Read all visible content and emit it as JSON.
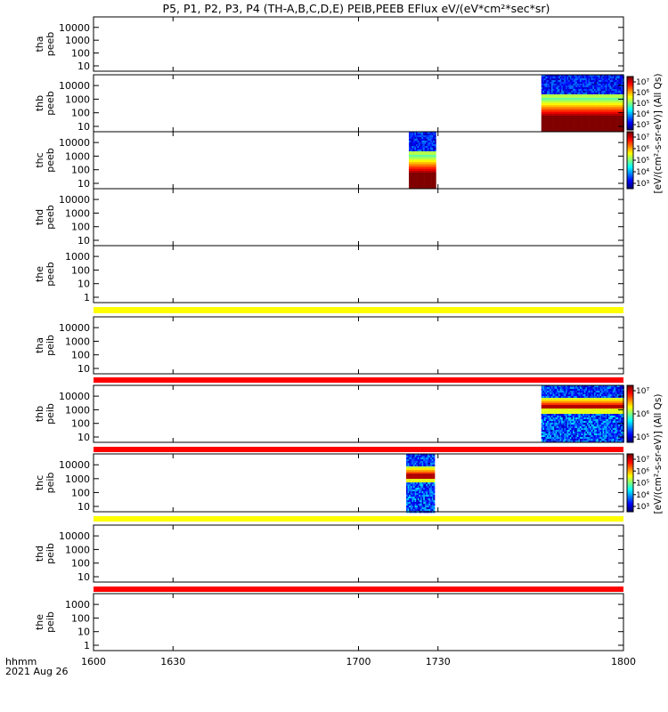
{
  "title": "P5, P1, P2, P3, P4 (TH-A,B,C,D,E) PEIB,PEEB EFlux eV/(eV*cm²*sec*sr)",
  "footer": {
    "label": "hhmm",
    "date": "2021 Aug 26"
  },
  "colors": {
    "panel_frame": "#000000",
    "yellow_bar": "#ffff00",
    "red_bar": "#ff0000"
  },
  "chart_data": {
    "type": "heatmap",
    "x": {
      "label": "hhmm",
      "range": [
        1600,
        1800
      ],
      "ticks": [
        {
          "v": 1600,
          "label": "1600"
        },
        {
          "v": 1630,
          "label": "1630"
        },
        {
          "v": 1700,
          "label": "1700"
        },
        {
          "v": 1730,
          "label": "1730"
        },
        {
          "v": 1800,
          "label": "1800"
        }
      ]
    },
    "colorbar_groups": [
      {
        "label": "[eV/(cm²-s-sr-eV)] (All Qs)",
        "ticks": [
          "10⁵",
          "10⁶",
          "10⁷"
        ],
        "bars": [
          {
            "ticks": [
              "10³",
              "10⁴",
              "10⁵",
              "10⁶",
              "10⁷"
            ]
          },
          {
            "ticks": [
              "10³",
              "10⁴",
              "10⁵",
              "10⁶",
              "10⁷"
            ]
          }
        ]
      },
      {
        "label": "[eV/(cm²-s-sr-eV)] (All Qs)",
        "bars": [
          {
            "ticks": [
              "10⁵",
              "10⁶",
              "10⁷"
            ]
          },
          {
            "ticks": [
              "10³",
              "10⁴",
              "10⁵",
              "10⁶",
              "10⁷"
            ]
          }
        ]
      }
    ],
    "panels": [
      {
        "line1": "tha",
        "line2": "peeb",
        "yticks": [
          "10",
          "100",
          "1000",
          "10000"
        ],
        "data": []
      },
      {
        "line1": "thb",
        "line2": "peeb",
        "yticks": [
          "10",
          "100",
          "1000",
          "10000"
        ],
        "data": [
          {
            "x_start": 1769,
            "x_end": 1800,
            "style": "electron"
          }
        ]
      },
      {
        "line1": "thc",
        "line2": "peeb",
        "yticks": [
          "10",
          "100",
          "1000",
          "10000"
        ],
        "data": [
          {
            "x_start": 1719,
            "x_end": 1729,
            "style": "electron"
          }
        ]
      },
      {
        "line1": "thd",
        "line2": "peeb",
        "yticks": [
          "10",
          "100",
          "1000",
          "10000"
        ],
        "data": []
      },
      {
        "line1": "the",
        "line2": "peeb",
        "yticks": [
          "1",
          "10",
          "100",
          "1000"
        ],
        "data": []
      },
      {
        "line1": "tha",
        "line2": "peib",
        "yticks": [
          "10",
          "100",
          "1000",
          "10000"
        ],
        "data": []
      },
      {
        "line1": "thb",
        "line2": "peib",
        "yticks": [
          "10",
          "100",
          "1000",
          "10000"
        ],
        "data": [
          {
            "x_start": 1769,
            "x_end": 1800,
            "style": "ion"
          }
        ]
      },
      {
        "line1": "thc",
        "line2": "peib",
        "yticks": [
          "10",
          "100",
          "1000",
          "10000"
        ],
        "data": [
          {
            "x_start": 1718,
            "x_end": 1729,
            "style": "ion"
          }
        ]
      },
      {
        "line1": "thd",
        "line2": "peib",
        "yticks": [
          "10",
          "100",
          "1000",
          "10000"
        ],
        "data": []
      },
      {
        "line1": "the",
        "line2": "peib",
        "yticks": [
          "1",
          "10",
          "100",
          "1000"
        ],
        "data": []
      }
    ],
    "quality_bars": [
      {
        "after_panel": 4,
        "color": "yellow"
      },
      {
        "after_panel": 5,
        "color": "red"
      },
      {
        "after_panel": 6,
        "color": "red"
      },
      {
        "after_panel": 7,
        "color": "yellow"
      },
      {
        "after_panel": 8,
        "color": "red"
      }
    ]
  }
}
